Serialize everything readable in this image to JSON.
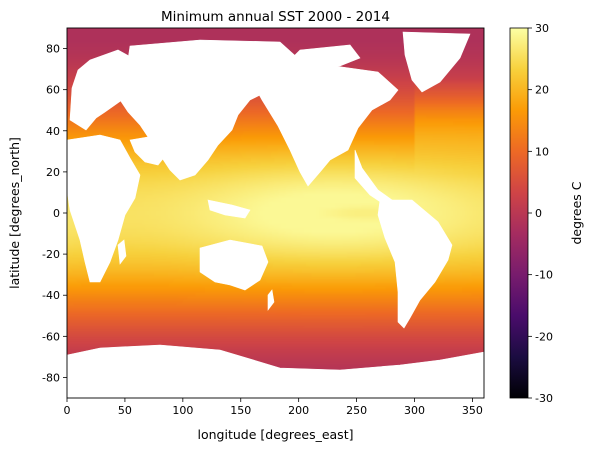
{
  "chart_data": {
    "type": "heatmap",
    "title": "Minimum annual SST 2000 - 2014",
    "xlabel": "longitude [degrees_east]",
    "ylabel": "latitude [degrees_north]",
    "xlim": [
      0,
      360
    ],
    "ylim": [
      -90,
      90
    ],
    "x_ticks": [
      0,
      50,
      100,
      150,
      200,
      250,
      300,
      350
    ],
    "y_ticks": [
      -80,
      -60,
      -40,
      -20,
      0,
      20,
      40,
      60,
      80
    ],
    "colorbar": {
      "label": "degrees C",
      "range": [
        -30,
        30
      ],
      "ticks": [
        -30,
        -20,
        -10,
        0,
        10,
        20,
        30
      ],
      "colormap": "inferno",
      "stops": [
        "#000004",
        "#1b0c41",
        "#4a0c6b",
        "#781c6d",
        "#a52c60",
        "#cf4446",
        "#ed6925",
        "#fb9b06",
        "#f7d13d",
        "#fcffa4"
      ]
    },
    "missing_color": "#ffffff",
    "field_description": "warm equatorial band (~28 °C) cooling toward the poles; polar oceans near -2 °C; land masked white",
    "grid": false
  }
}
